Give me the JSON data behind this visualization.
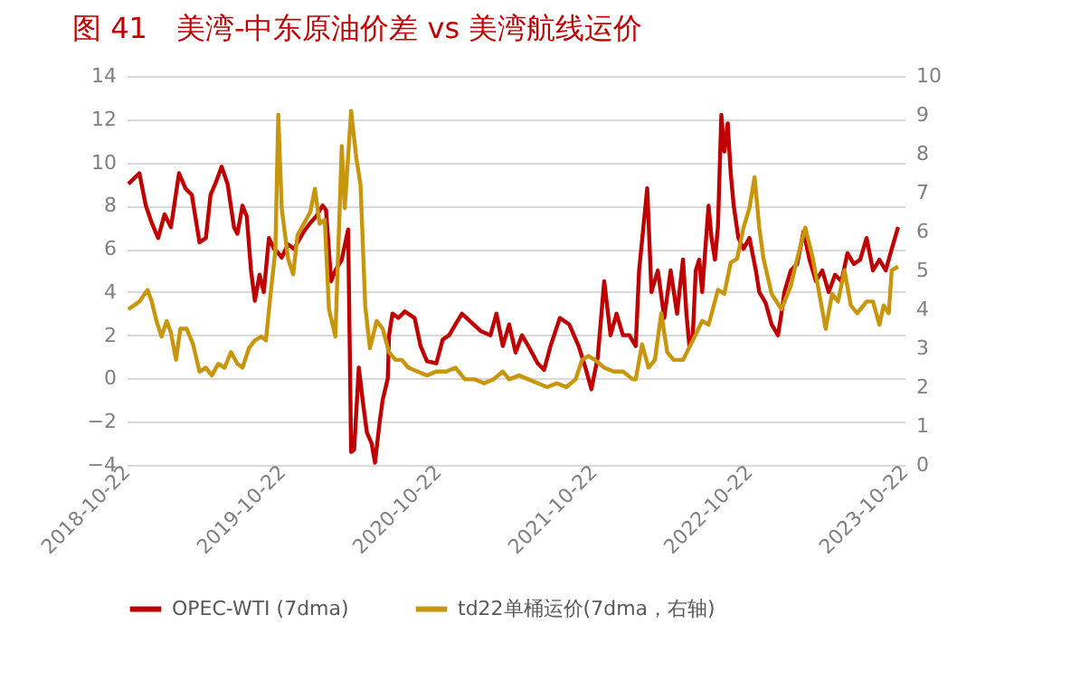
{
  "chart_data": {
    "type": "line",
    "title": "图 41　美湾-中东原油价差 vs 美湾航线运价",
    "xlim": [
      "2018-10-22",
      "2023-10-22"
    ],
    "xticks": [
      "2018-10-22",
      "2019-10-22",
      "2020-10-22",
      "2021-10-22",
      "2022-10-22",
      "2023-10-22"
    ],
    "ylim": [
      -4,
      14
    ],
    "yticks": [
      -4,
      -2,
      0,
      2,
      4,
      6,
      8,
      10,
      12,
      14
    ],
    "y2lim": [
      0,
      10
    ],
    "y2ticks": [
      0,
      1,
      2,
      3,
      4,
      5,
      6,
      7,
      8,
      9,
      10
    ],
    "grid": "y",
    "legend": "bottom",
    "series": [
      {
        "name": "OPEC-WTI (7dma)",
        "color": "#c00000",
        "x": [
          "2018-10-26",
          "2018-11-21",
          "2018-12-06",
          "2018-12-20",
          "2019-01-04",
          "2019-01-19",
          "2019-02-03",
          "2019-02-22",
          "2019-03-09",
          "2019-03-24",
          "2019-04-11",
          "2019-04-26",
          "2019-05-07",
          "2019-05-18",
          "2019-06-02",
          "2019-06-16",
          "2019-07-01",
          "2019-07-09",
          "2019-07-21",
          "2019-07-31",
          "2019-08-10",
          "2019-08-19",
          "2019-08-30",
          "2019-09-09",
          "2019-09-21",
          "2019-10-03",
          "2019-10-13",
          "2019-10-21",
          "2019-11-05",
          "2019-11-19",
          "2019-12-12",
          "2019-12-27",
          "2020-01-10",
          "2020-01-25",
          "2020-02-02",
          "2020-02-14",
          "2020-02-24",
          "2020-03-10",
          "2020-03-25",
          "2020-04-01",
          "2020-04-08",
          "2020-04-19",
          "2020-04-28",
          "2020-05-08",
          "2020-05-19",
          "2020-05-27",
          "2020-06-07",
          "2020-06-14",
          "2020-06-26",
          "2020-06-29",
          "2020-07-07",
          "2020-07-21",
          "2020-08-05",
          "2020-08-28",
          "2020-09-11",
          "2020-09-26",
          "2020-10-18",
          "2020-11-02",
          "2020-11-17",
          "2020-12-02",
          "2020-12-17",
          "2021-01-08",
          "2021-01-30",
          "2021-02-22",
          "2021-03-08",
          "2021-03-23",
          "2021-04-07",
          "2021-04-22",
          "2021-05-07",
          "2021-05-22",
          "2021-06-13",
          "2021-06-28",
          "2021-07-13",
          "2021-08-04",
          "2021-08-26",
          "2021-09-17",
          "2021-10-03",
          "2021-10-17",
          "2021-11-01",
          "2021-11-16",
          "2021-12-01",
          "2021-12-15",
          "2021-12-30",
          "2022-01-14",
          "2022-01-29",
          "2022-02-06",
          "2022-02-20",
          "2022-02-25",
          "2022-03-07",
          "2022-03-22",
          "2022-04-06",
          "2022-04-21",
          "2022-05-06",
          "2022-05-20",
          "2022-05-28",
          "2022-06-04",
          "2022-06-12",
          "2022-06-19",
          "2022-06-27",
          "2022-07-04",
          "2022-07-19",
          "2022-07-26",
          "2022-08-03",
          "2022-08-10",
          "2022-08-18",
          "2022-08-25",
          "2022-09-02",
          "2022-09-09",
          "2022-09-16",
          "2022-09-27",
          "2022-10-09",
          "2022-10-23",
          "2022-11-07",
          "2022-11-15",
          "2022-11-30",
          "2022-12-14",
          "2022-12-29",
          "2023-01-06",
          "2023-01-13",
          "2023-01-28",
          "2023-02-12",
          "2023-02-27",
          "2023-03-13",
          "2023-03-28",
          "2023-04-12",
          "2023-04-27",
          "2023-05-12",
          "2023-05-27",
          "2023-06-10",
          "2023-06-25",
          "2023-07-10",
          "2023-07-25",
          "2023-08-09",
          "2023-08-24",
          "2023-09-08",
          "2023-09-22",
          "2023-10-07"
        ],
        "values": [
          9.0,
          9.5,
          8.0,
          7.2,
          6.5,
          7.6,
          7.0,
          9.5,
          8.8,
          8.5,
          6.3,
          6.5,
          8.5,
          9.0,
          9.8,
          9.0,
          7.0,
          6.7,
          8.0,
          7.5,
          5.0,
          3.6,
          4.8,
          4.0,
          6.5,
          6.0,
          5.8,
          5.6,
          6.2,
          6.0,
          6.8,
          7.2,
          7.5,
          8.0,
          7.8,
          4.5,
          5.0,
          5.5,
          6.9,
          -3.4,
          -3.3,
          0.5,
          -1.0,
          -2.5,
          -3.0,
          -3.9,
          -2.0,
          -1.0,
          0,
          2.0,
          3.0,
          2.8,
          3.1,
          2.8,
          1.5,
          0.8,
          0.7,
          1.8,
          2.0,
          2.5,
          3.0,
          2.6,
          2.2,
          2.0,
          3.0,
          1.5,
          2.5,
          1.2,
          2.0,
          1.5,
          0.7,
          0.4,
          1.5,
          2.8,
          2.5,
          1.5,
          0.5,
          -0.5,
          1.0,
          4.5,
          2.0,
          3.0,
          2.0,
          2.0,
          1.5,
          5.0,
          7.8,
          8.8,
          4.0,
          5.0,
          2.8,
          5.0,
          3.0,
          5.5,
          3.0,
          1.5,
          2.0,
          5.0,
          5.5,
          4.0,
          8.0,
          6.5,
          5.5,
          7.0,
          12.2,
          10.5,
          11.8,
          9.5,
          8.0,
          6.5,
          6.0,
          6.5,
          5.0,
          4.0,
          3.5,
          2.5,
          2.0,
          3.0,
          4.0,
          5.0,
          5.3,
          6.8,
          5.5,
          4.5,
          5.0,
          4.0,
          4.8,
          4.5,
          5.8,
          5.3,
          5.5,
          6.5,
          5.0,
          5.5,
          5.0,
          6.0,
          7.0
        ]
      },
      {
        "name": "td22单桶运价(7dma，右轴)",
        "color": "#c8960c",
        "axis": "y2",
        "x": [
          "2018-10-26",
          "2018-11-21",
          "2018-12-10",
          "2018-12-20",
          "2018-12-31",
          "2019-01-12",
          "2019-01-24",
          "2019-02-03",
          "2019-02-15",
          "2019-02-25",
          "2019-03-12",
          "2019-03-27",
          "2019-04-11",
          "2019-04-26",
          "2019-05-10",
          "2019-05-25",
          "2019-06-09",
          "2019-06-24",
          "2019-07-09",
          "2019-07-21",
          "2019-08-05",
          "2019-08-19",
          "2019-09-03",
          "2019-09-14",
          "2019-09-24",
          "2019-10-06",
          "2019-10-13",
          "2019-10-21",
          "2019-11-05",
          "2019-11-17",
          "2019-11-27",
          "2019-12-12",
          "2019-12-27",
          "2020-01-07",
          "2020-01-18",
          "2020-01-30",
          "2020-02-09",
          "2020-02-24",
          "2020-03-10",
          "2020-03-17",
          "2020-04-01",
          "2020-04-13",
          "2020-04-23",
          "2020-05-04",
          "2020-05-15",
          "2020-05-31",
          "2020-06-14",
          "2020-06-29",
          "2020-07-14",
          "2020-07-29",
          "2020-08-13",
          "2020-09-04",
          "2020-09-26",
          "2020-10-18",
          "2020-11-10",
          "2020-12-02",
          "2020-12-24",
          "2021-01-16",
          "2021-02-07",
          "2021-03-01",
          "2021-03-23",
          "2021-04-07",
          "2021-04-30",
          "2021-05-22",
          "2021-06-13",
          "2021-07-05",
          "2021-07-28",
          "2021-08-19",
          "2021-09-10",
          "2021-09-25",
          "2021-10-10",
          "2021-10-25",
          "2021-11-16",
          "2021-12-08",
          "2021-12-30",
          "2022-01-22",
          "2022-01-29",
          "2022-02-13",
          "2022-02-28",
          "2022-03-15",
          "2022-03-30",
          "2022-04-13",
          "2022-04-28",
          "2022-05-20",
          "2022-06-12",
          "2022-07-04",
          "2022-07-19",
          "2022-08-10",
          "2022-08-25",
          "2022-09-09",
          "2022-09-24",
          "2022-10-09",
          "2022-10-23",
          "2022-11-04",
          "2022-11-15",
          "2022-11-25",
          "2022-12-14",
          "2023-01-06",
          "2023-01-28",
          "2023-02-12",
          "2023-03-03",
          "2023-03-21",
          "2023-04-05",
          "2023-04-20",
          "2023-05-05",
          "2023-05-19",
          "2023-06-03",
          "2023-06-18",
          "2023-07-03",
          "2023-07-25",
          "2023-08-09",
          "2023-08-24",
          "2023-09-03",
          "2023-09-15",
          "2023-09-22",
          "2023-10-07"
        ],
        "values": [
          4.0,
          4.2,
          4.5,
          4.2,
          3.7,
          3.3,
          3.7,
          3.4,
          2.7,
          3.5,
          3.5,
          3.1,
          2.4,
          2.5,
          2.3,
          2.6,
          2.5,
          2.9,
          2.6,
          2.5,
          3.0,
          3.2,
          3.3,
          3.2,
          4.3,
          5.5,
          9.0,
          6.6,
          5.3,
          4.9,
          5.9,
          6.2,
          6.5,
          7.1,
          6.2,
          6.3,
          4.0,
          3.3,
          8.2,
          6.6,
          9.1,
          7.9,
          7.2,
          4.1,
          3.0,
          3.7,
          3.5,
          2.9,
          2.7,
          2.7,
          2.5,
          2.4,
          2.3,
          2.4,
          2.4,
          2.5,
          2.2,
          2.2,
          2.1,
          2.2,
          2.4,
          2.2,
          2.3,
          2.2,
          2.1,
          2.0,
          2.1,
          2.0,
          2.2,
          2.7,
          2.8,
          2.7,
          2.5,
          2.4,
          2.4,
          2.2,
          2.2,
          3.1,
          2.5,
          2.7,
          3.9,
          2.9,
          2.7,
          2.7,
          3.2,
          3.7,
          3.6,
          4.5,
          4.4,
          5.2,
          5.3,
          6.1,
          6.6,
          7.4,
          6.1,
          5.3,
          4.4,
          4.0,
          4.6,
          5.3,
          6.1,
          5.3,
          4.4,
          3.5,
          4.4,
          4.2,
          5.0,
          4.1,
          3.9,
          4.2,
          4.2,
          3.6,
          4.1,
          3.9,
          5.0,
          5.1
        ]
      }
    ]
  }
}
